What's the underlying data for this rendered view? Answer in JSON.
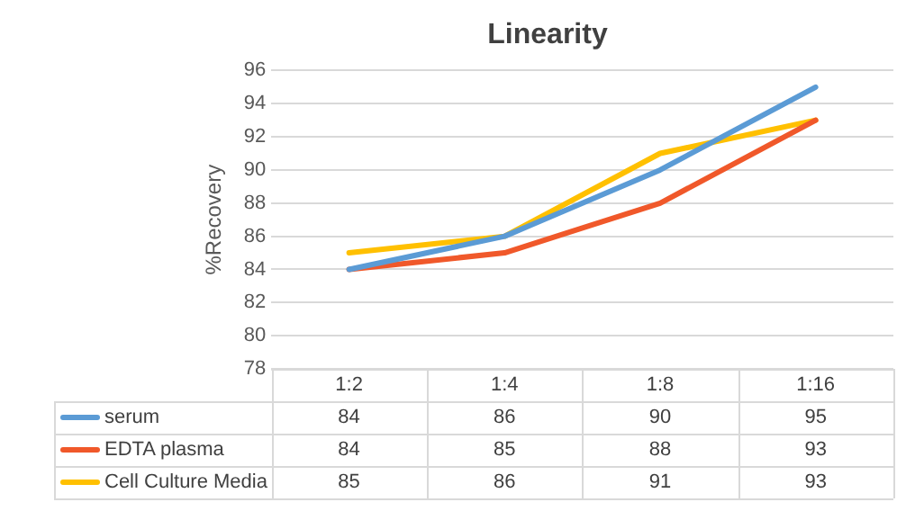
{
  "chart_data": {
    "type": "line",
    "title": "Linearity",
    "ylabel": "%Recovery",
    "categories": [
      "1:2",
      "1:4",
      "1:8",
      "1:16"
    ],
    "series": [
      {
        "name": "serum",
        "color": "#5b9bd5",
        "values": [
          84,
          86,
          90,
          95
        ]
      },
      {
        "name": "EDTA plasma",
        "color": "#f0582a",
        "values": [
          84,
          85,
          88,
          93
        ]
      },
      {
        "name": "Cell Culture Media",
        "color": "#ffc000",
        "values": [
          85,
          86,
          91,
          93
        ]
      }
    ],
    "ylim": [
      78,
      96
    ],
    "yticks": [
      78,
      80,
      82,
      84,
      86,
      88,
      90,
      92,
      94,
      96
    ],
    "grid": "y",
    "legend": "bottom",
    "data_labels": true,
    "marker": "none",
    "line_style": "solid"
  }
}
